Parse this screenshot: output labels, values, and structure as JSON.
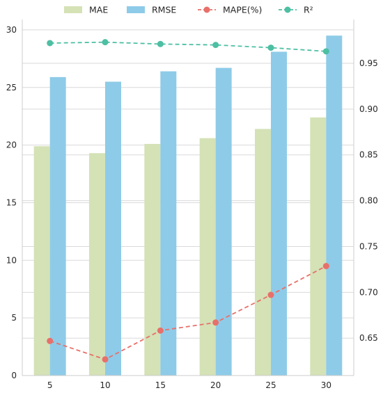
{
  "chart_data": {
    "type": "bar",
    "categories": [
      "5",
      "10",
      "15",
      "20",
      "25",
      "30"
    ],
    "series": [
      {
        "name": "MAE",
        "kind": "bar",
        "axis": "left",
        "color": "#d4e2b6",
        "values": [
          19.9,
          19.3,
          20.1,
          20.6,
          21.4,
          22.4
        ]
      },
      {
        "name": "RMSE",
        "kind": "bar",
        "axis": "left",
        "color": "#8ecbe8",
        "values": [
          25.9,
          25.5,
          26.4,
          26.7,
          28.1,
          29.5
        ]
      },
      {
        "name": "MAPE(%)",
        "kind": "line",
        "axis": "left",
        "color": "#e8706a",
        "dashed": true,
        "values": [
          3.0,
          1.4,
          3.9,
          4.6,
          7.0,
          9.5
        ]
      },
      {
        "name": "R²",
        "kind": "line",
        "axis": "right",
        "color": "#4dbfa3",
        "dashed": true,
        "values": [
          0.972,
          0.973,
          0.971,
          0.97,
          0.967,
          0.963
        ]
      }
    ],
    "y_left": {
      "lim": [
        0,
        30.9
      ],
      "ticks": [
        0,
        5,
        10,
        15,
        20,
        25,
        30
      ]
    },
    "y_right": {
      "lim": [
        0.6092,
        0.9978
      ],
      "ticks": [
        0.65,
        0.7,
        0.75,
        0.8,
        0.85,
        0.9,
        0.95
      ]
    },
    "title": "",
    "xlabel": "",
    "ylabel": "",
    "legend_position": "top",
    "grid": true
  }
}
